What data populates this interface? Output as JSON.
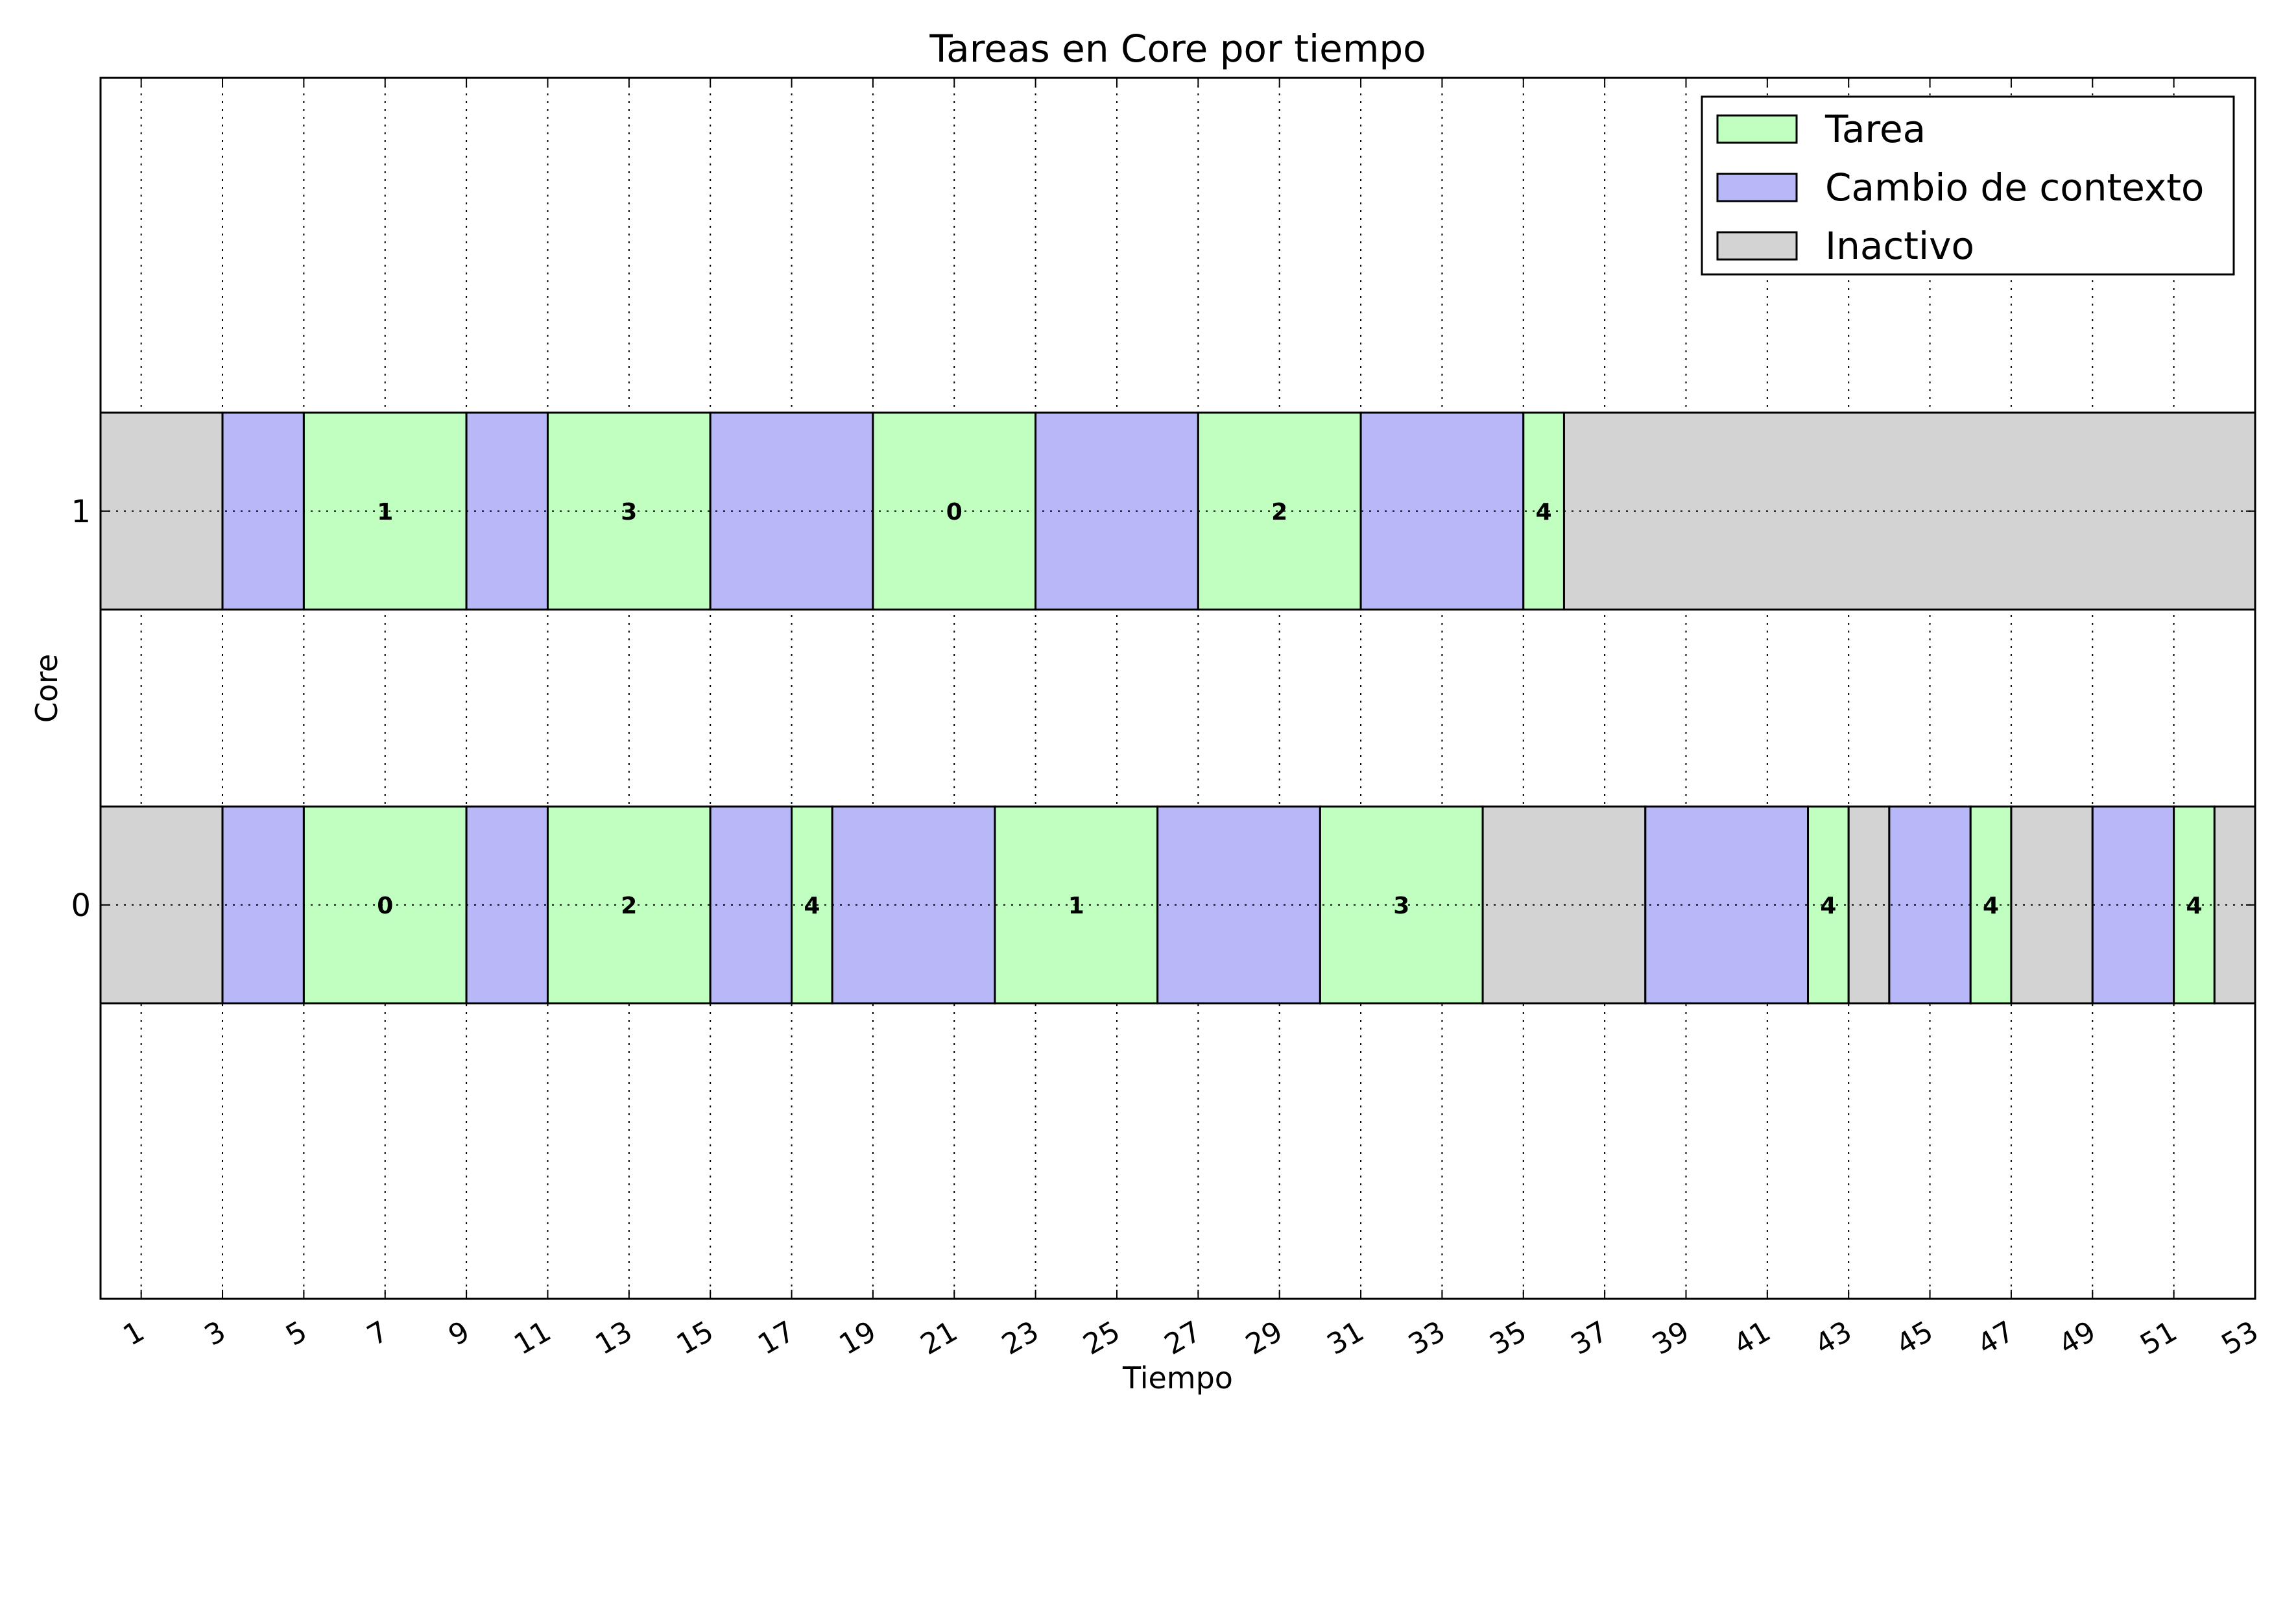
{
  "chart_data": {
    "type": "gantt",
    "title": "Tareas en Core por tiempo",
    "xlabel": "Tiempo",
    "ylabel": "Core",
    "xlim": [
      0,
      53
    ],
    "ylim": [
      -1,
      2.1
    ],
    "x_ticks": [
      "1",
      "3",
      "5",
      "7",
      "9",
      "11",
      "13",
      "15",
      "17",
      "19",
      "21",
      "23",
      "25",
      "27",
      "29",
      "31",
      "33",
      "35",
      "37",
      "39",
      "41",
      "43",
      "45",
      "47",
      "49",
      "51",
      "53"
    ],
    "y_ticks": [
      "0",
      "1"
    ],
    "grid": true,
    "legend_position": "top-right",
    "legend": [
      {
        "label": "Tarea",
        "color": "#c0ffc0"
      },
      {
        "label": "Cambio de contexto",
        "color": "#b8b8f8"
      },
      {
        "label": "Inactivo",
        "color": "#d3d3d3"
      }
    ],
    "bar_height": 0.5,
    "cores": [
      {
        "core": 1,
        "segments": [
          {
            "kind": "Inactivo",
            "start": 0,
            "end": 3,
            "label": ""
          },
          {
            "kind": "Cambio de contexto",
            "start": 3,
            "end": 5,
            "label": ""
          },
          {
            "kind": "Tarea",
            "start": 5,
            "end": 9,
            "label": "1"
          },
          {
            "kind": "Cambio de contexto",
            "start": 9,
            "end": 11,
            "label": ""
          },
          {
            "kind": "Tarea",
            "start": 11,
            "end": 15,
            "label": "3"
          },
          {
            "kind": "Cambio de contexto",
            "start": 15,
            "end": 19,
            "label": ""
          },
          {
            "kind": "Tarea",
            "start": 19,
            "end": 23,
            "label": "0"
          },
          {
            "kind": "Cambio de contexto",
            "start": 23,
            "end": 27,
            "label": ""
          },
          {
            "kind": "Tarea",
            "start": 27,
            "end": 31,
            "label": "2"
          },
          {
            "kind": "Cambio de contexto",
            "start": 31,
            "end": 35,
            "label": ""
          },
          {
            "kind": "Tarea",
            "start": 35,
            "end": 36,
            "label": "4"
          },
          {
            "kind": "Inactivo",
            "start": 36,
            "end": 53,
            "label": ""
          }
        ]
      },
      {
        "core": 0,
        "segments": [
          {
            "kind": "Inactivo",
            "start": 0,
            "end": 3,
            "label": ""
          },
          {
            "kind": "Cambio de contexto",
            "start": 3,
            "end": 5,
            "label": ""
          },
          {
            "kind": "Tarea",
            "start": 5,
            "end": 9,
            "label": "0"
          },
          {
            "kind": "Cambio de contexto",
            "start": 9,
            "end": 11,
            "label": ""
          },
          {
            "kind": "Tarea",
            "start": 11,
            "end": 15,
            "label": "2"
          },
          {
            "kind": "Cambio de contexto",
            "start": 15,
            "end": 17,
            "label": ""
          },
          {
            "kind": "Tarea",
            "start": 17,
            "end": 18,
            "label": "4"
          },
          {
            "kind": "Cambio de contexto",
            "start": 18,
            "end": 22,
            "label": ""
          },
          {
            "kind": "Tarea",
            "start": 22,
            "end": 26,
            "label": "1"
          },
          {
            "kind": "Cambio de contexto",
            "start": 26,
            "end": 30,
            "label": ""
          },
          {
            "kind": "Tarea",
            "start": 30,
            "end": 34,
            "label": "3"
          },
          {
            "kind": "Inactivo",
            "start": 34,
            "end": 38,
            "label": ""
          },
          {
            "kind": "Cambio de contexto",
            "start": 38,
            "end": 42,
            "label": ""
          },
          {
            "kind": "Tarea",
            "start": 42,
            "end": 43,
            "label": "4"
          },
          {
            "kind": "Inactivo",
            "start": 43,
            "end": 44,
            "label": ""
          },
          {
            "kind": "Cambio de contexto",
            "start": 44,
            "end": 46,
            "label": ""
          },
          {
            "kind": "Tarea",
            "start": 46,
            "end": 47,
            "label": "4"
          },
          {
            "kind": "Inactivo",
            "start": 47,
            "end": 49,
            "label": ""
          },
          {
            "kind": "Cambio de contexto",
            "start": 49,
            "end": 51,
            "label": ""
          },
          {
            "kind": "Tarea",
            "start": 51,
            "end": 52,
            "label": "4"
          },
          {
            "kind": "Inactivo",
            "start": 52,
            "end": 53,
            "label": ""
          }
        ]
      }
    ]
  }
}
